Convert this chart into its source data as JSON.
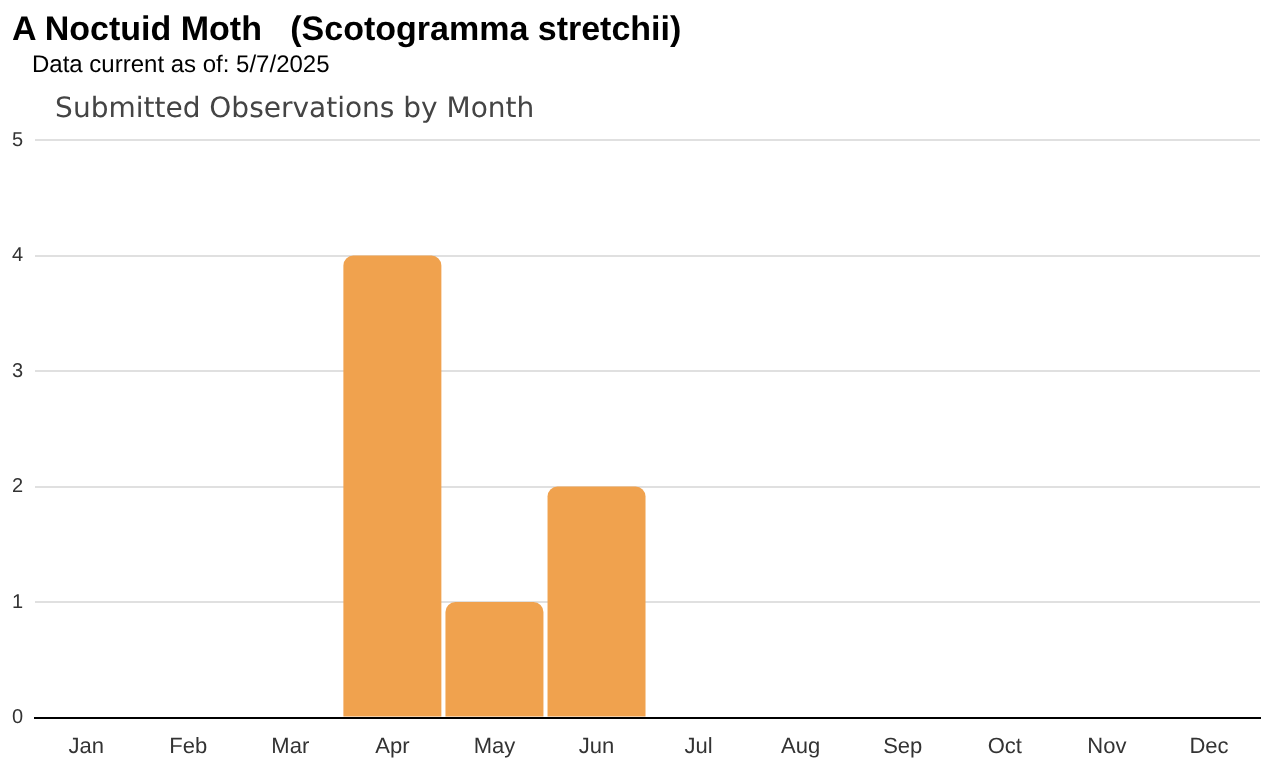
{
  "chart_data": {
    "type": "bar",
    "title": "A Noctuid Moth   (Scotogramma stretchii)",
    "subtitle": "Data current as of: 5/7/2025",
    "annotations": [
      "Submitted Observations by Month"
    ],
    "categories": [
      "Jan",
      "Feb",
      "Mar",
      "Apr",
      "May",
      "Jun",
      "Jul",
      "Aug",
      "Sep",
      "Oct",
      "Nov",
      "Dec"
    ],
    "values": [
      0,
      0,
      0,
      4,
      1,
      2,
      0,
      0,
      0,
      0,
      0,
      0
    ],
    "color": "#f0a24e",
    "ylim": [
      0,
      5
    ],
    "yticks": [
      0,
      1,
      2,
      3,
      4,
      5
    ],
    "grid": "y",
    "legend": false
  }
}
